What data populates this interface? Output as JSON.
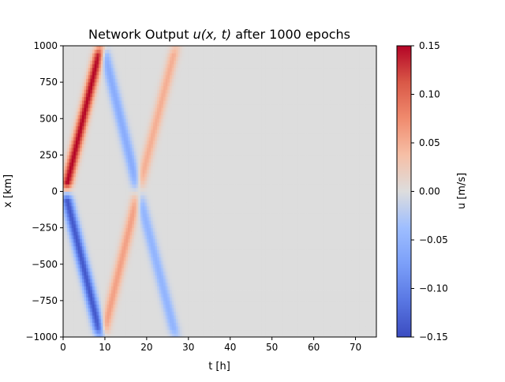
{
  "chart_data": {
    "type": "heatmap",
    "title": "Network Output u(x, t) after 1000 epochs",
    "title_prefix": "Network Output ",
    "title_math": "u(x, t)",
    "title_suffix": " after 1000 epochs",
    "xlabel": "t [h]",
    "ylabel": "x [km]",
    "xlim": [
      0,
      75
    ],
    "ylim": [
      -1000,
      1000
    ],
    "xticks": [
      0,
      10,
      20,
      30,
      40,
      50,
      60,
      70
    ],
    "xtick_labels": [
      "0",
      "10",
      "20",
      "30",
      "40",
      "50",
      "60",
      "70"
    ],
    "yticks": [
      1000,
      750,
      500,
      250,
      0,
      -250,
      -500,
      -750,
      -1000
    ],
    "ytick_labels": [
      "1000",
      "750",
      "500",
      "250",
      "0",
      "−250",
      "−500",
      "−750",
      "−1000"
    ],
    "colormap": "coolwarm",
    "colorbar": {
      "label": "u [m/s]",
      "range": [
        -0.15,
        0.15
      ],
      "ticks": [
        0.15,
        0.1,
        0.05,
        0.0,
        -0.05,
        -0.1,
        -0.15
      ],
      "tick_labels": [
        "0.15",
        "0.10",
        "0.05",
        "0.00",
        "−0.05",
        "−0.10",
        "−0.15"
      ]
    },
    "features": [
      {
        "name": "upper primary wave",
        "t": [
          0.5,
          9
        ],
        "x": [
          0,
          1000
        ],
        "amplitude": 0.15
      },
      {
        "name": "lower primary wave",
        "t": [
          0.5,
          9
        ],
        "x": [
          0,
          -1000
        ],
        "amplitude": -0.14
      },
      {
        "name": "upper reflected wave",
        "t": [
          9.5,
          18
        ],
        "x": [
          1000,
          0
        ],
        "amplitude": -0.06
      },
      {
        "name": "lower reflected wave",
        "t": [
          9.5,
          18
        ],
        "x": [
          -1000,
          0
        ],
        "amplitude": 0.06
      },
      {
        "name": "upper second wave",
        "t": [
          18,
          27
        ],
        "x": [
          0,
          1000
        ],
        "amplitude": 0.05
      },
      {
        "name": "lower second wave",
        "t": [
          18,
          27
        ],
        "x": [
          0,
          -1000
        ],
        "amplitude": -0.05
      }
    ]
  }
}
